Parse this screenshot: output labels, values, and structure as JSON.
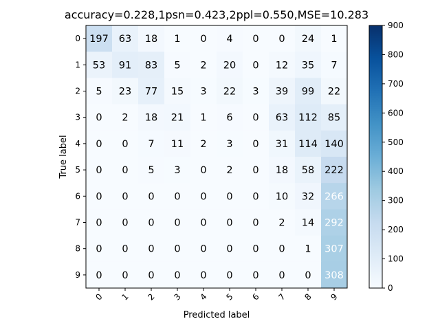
{
  "chart_data": {
    "type": "heatmap",
    "title": "accuracy=0.228,1psn=0.423,2ppl=0.550,MSE=10.283",
    "xlabel": "Predicted label",
    "ylabel": "True label",
    "x_categories": [
      "0",
      "1",
      "2",
      "3",
      "4",
      "5",
      "6",
      "7",
      "8",
      "9"
    ],
    "y_categories": [
      "0",
      "1",
      "2",
      "3",
      "4",
      "5",
      "6",
      "7",
      "8",
      "9"
    ],
    "values": [
      [
        197,
        63,
        18,
        1,
        0,
        4,
        0,
        0,
        24,
        1
      ],
      [
        53,
        91,
        83,
        5,
        2,
        20,
        0,
        12,
        35,
        7
      ],
      [
        5,
        23,
        77,
        15,
        3,
        22,
        3,
        39,
        99,
        22
      ],
      [
        0,
        2,
        18,
        21,
        1,
        6,
        0,
        63,
        112,
        85
      ],
      [
        0,
        0,
        7,
        11,
        2,
        3,
        0,
        31,
        114,
        140
      ],
      [
        0,
        0,
        5,
        3,
        0,
        2,
        0,
        18,
        58,
        222
      ],
      [
        0,
        0,
        0,
        0,
        0,
        0,
        0,
        10,
        32,
        266
      ],
      [
        0,
        0,
        0,
        0,
        0,
        0,
        0,
        2,
        14,
        292
      ],
      [
        0,
        0,
        0,
        0,
        0,
        0,
        0,
        0,
        1,
        307
      ],
      [
        0,
        0,
        0,
        0,
        0,
        0,
        0,
        0,
        0,
        308
      ]
    ],
    "colorbar": {
      "range": [
        0,
        900
      ],
      "ticks": [
        "0",
        "100",
        "200",
        "300",
        "400",
        "500",
        "600",
        "700",
        "800",
        "900"
      ]
    },
    "colormap": "Blues",
    "colormap_stops": [
      "#f7fbff",
      "#deebf7",
      "#c6dbef",
      "#9ecae1",
      "#6baed6",
      "#4292c6",
      "#2171b5",
      "#08519c",
      "#08306b"
    ],
    "text_colors": {
      "dark": "#000000",
      "light": "#ffffff"
    }
  }
}
